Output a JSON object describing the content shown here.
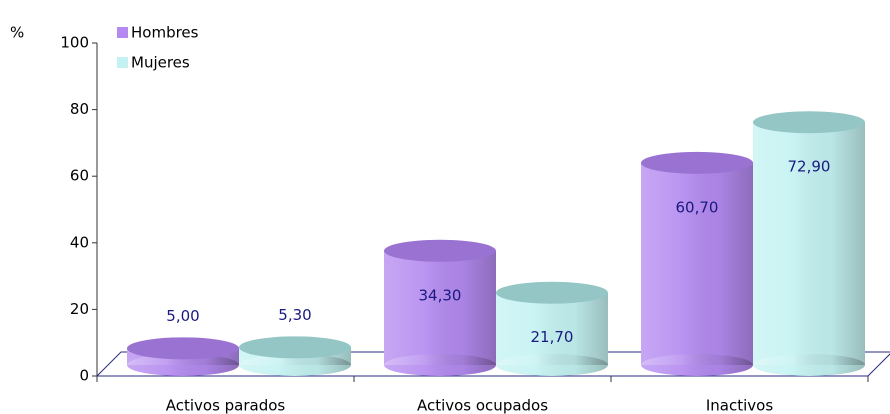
{
  "chart_data": {
    "type": "bar",
    "y_label": "%",
    "categories": [
      "Activos parados",
      "Activos ocupados",
      "Inactivos"
    ],
    "series": [
      {
        "name": "Hombres",
        "color": "#b48af0",
        "top_color": "#9a72d2",
        "values": [
          5.0,
          34.3,
          60.7
        ],
        "value_labels": [
          "5,00",
          "34,30",
          "60,70"
        ]
      },
      {
        "name": "Mujeres",
        "color": "#c4f2f2",
        "top_color": "#94c6c6",
        "values": [
          5.3,
          21.7,
          72.9
        ],
        "value_labels": [
          "5,30",
          "21,70",
          "72,90"
        ]
      }
    ],
    "ylim": [
      0,
      100
    ],
    "yticks": [
      0,
      20,
      40,
      60,
      80,
      100
    ],
    "legend": "top-left"
  }
}
